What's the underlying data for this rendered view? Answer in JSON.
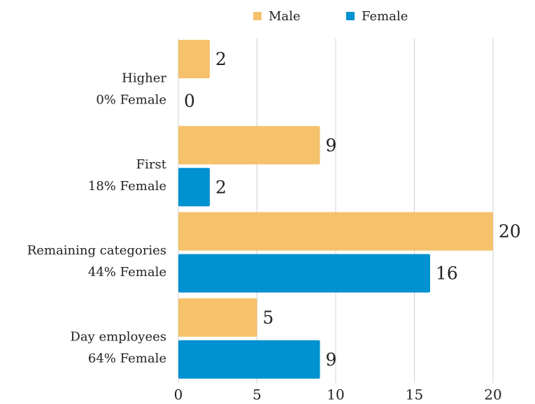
{
  "chart_data": {
    "type": "barh",
    "categories": [
      [
        "Higher",
        "0% Female"
      ],
      [
        "First",
        "18% Female"
      ],
      [
        "Remaining categories",
        "44% Female"
      ],
      [
        "Day employees",
        "64% Female"
      ]
    ],
    "series": [
      {
        "name": "Male",
        "color": "#f5c26b",
        "values": [
          2,
          9,
          20,
          5
        ]
      },
      {
        "name": "Female",
        "color": "#0091d0",
        "values": [
          0,
          2,
          16,
          9
        ]
      }
    ],
    "xlim": [
      0,
      20
    ],
    "xticks": [
      0,
      5,
      10,
      15,
      20
    ],
    "grid": true,
    "legend": "top"
  }
}
